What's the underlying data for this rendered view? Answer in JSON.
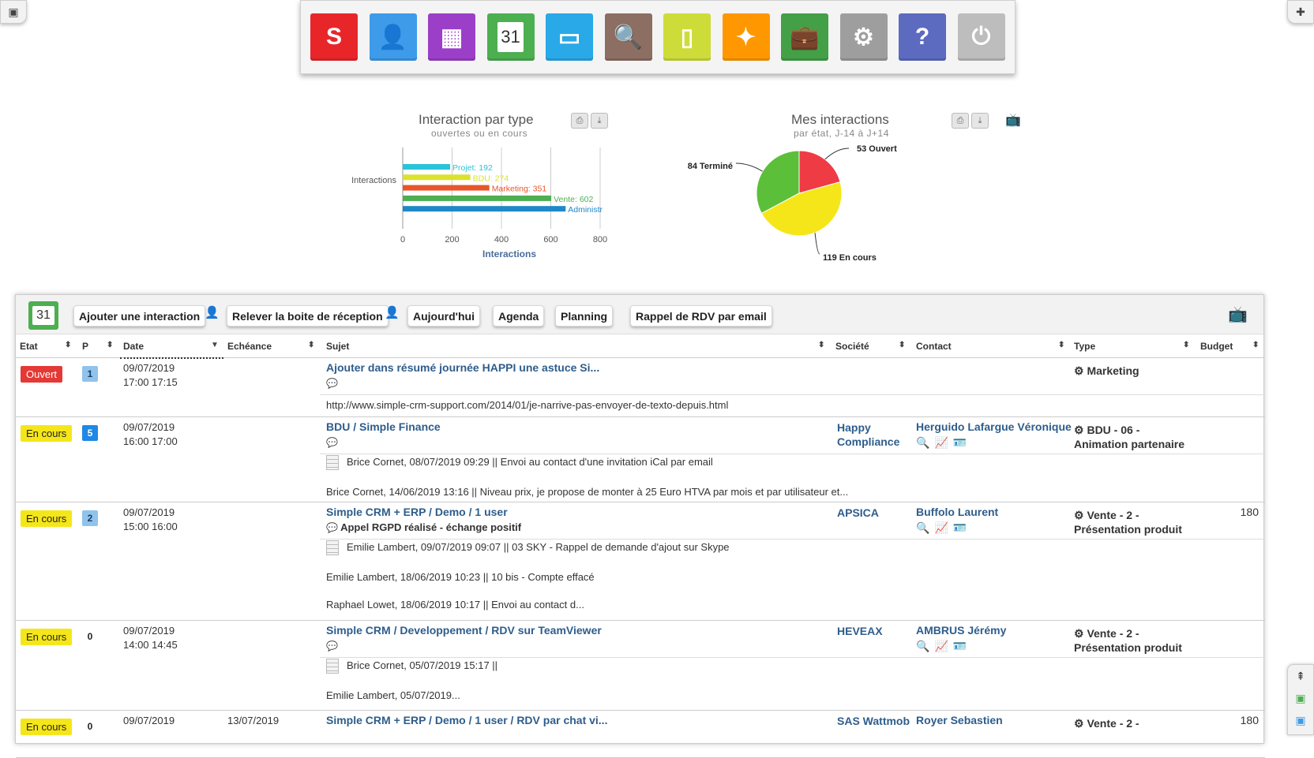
{
  "dock": {
    "apps": [
      {
        "icon": "crm-logo-icon",
        "color": "#e8262a",
        "glyph": "S"
      },
      {
        "icon": "contacts-icon",
        "color": "#3d9be9",
        "glyph": "👤"
      },
      {
        "icon": "companies-icon",
        "color": "#9b3fc8",
        "glyph": "▦"
      },
      {
        "icon": "calendar-icon",
        "color": "#4caf50",
        "glyph": "31"
      },
      {
        "icon": "folder-icon",
        "color": "#29a9e8",
        "glyph": "▭"
      },
      {
        "icon": "search-icon",
        "color": "#8d6e63",
        "glyph": "🔍"
      },
      {
        "icon": "document-icon",
        "color": "#cddc39",
        "glyph": "▯"
      },
      {
        "icon": "compass-icon",
        "color": "#ff9800",
        "glyph": "✦"
      },
      {
        "icon": "briefcase-icon",
        "color": "#43a047",
        "glyph": "💼"
      },
      {
        "icon": "settings-icon",
        "color": "#9e9e9e",
        "glyph": "⚙"
      },
      {
        "icon": "help-icon",
        "color": "#5c6bc0",
        "glyph": "?"
      },
      {
        "icon": "power-icon",
        "color": "#bdbdbd",
        "glyph": "⏻"
      }
    ]
  },
  "charts": {
    "bar": {
      "title": "Interaction par type",
      "subtitle": "ouvertes ou en cours"
    },
    "pie": {
      "title": "Mes interactions",
      "subtitle": "par état, J-14 à J+14"
    }
  },
  "chart_data": [
    {
      "type": "bar",
      "orientation": "horizontal",
      "title": "Interaction par type",
      "subtitle": "ouvertes ou en cours",
      "category_label": "Interactions",
      "xlabel": "Interactions",
      "xlim": [
        0,
        800
      ],
      "xticks": [
        "0",
        "200",
        "400",
        "600",
        "800"
      ],
      "series": [
        {
          "name": "Projet",
          "value": 192,
          "label": "Projet: 192",
          "color": "#29c4d8"
        },
        {
          "name": "BDU",
          "value": 274,
          "label": "BDU: 274",
          "color": "#dbe22a"
        },
        {
          "name": "Marketing",
          "value": 351,
          "label": "Marketing: 351",
          "color": "#e8562a"
        },
        {
          "name": "Vente",
          "value": 602,
          "label": "Vente: 602",
          "color": "#4caf50"
        },
        {
          "name": "Administr",
          "value": 660,
          "label": "Administr",
          "color": "#1e88c8"
        }
      ]
    },
    {
      "type": "pie",
      "title": "Mes interactions",
      "subtitle": "par état, J-14 à J+14",
      "slices": [
        {
          "name": "Ouvert",
          "value": 53,
          "label": "53 Ouvert",
          "color": "#ef3b44"
        },
        {
          "name": "En cours",
          "value": 119,
          "label": "119 En cours",
          "color": "#f5e61a"
        },
        {
          "name": "Terminé",
          "value": 84,
          "label": "84 Terminé",
          "color": "#5cbf3a"
        }
      ]
    }
  ],
  "toolbar": {
    "calendar_day": "31",
    "add_interaction": "Ajouter une interaction",
    "check_inbox": "Relever la boite de réception",
    "today": "Aujourd'hui",
    "agenda": "Agenda",
    "planning": "Planning",
    "email_reminder": "Rappel de RDV par email"
  },
  "table": {
    "headers": {
      "etat": "Etat",
      "p": "P",
      "date": "Date",
      "echeance": "Echéance",
      "sujet": "Sujet",
      "societe": "Société",
      "contact": "Contact",
      "type": "Type",
      "budget": "Budget"
    },
    "rows": [
      {
        "state": "Ouvert",
        "priority": "1",
        "date": "09/07/2019",
        "time": "17:00  17:15",
        "due": "",
        "subject": "Ajouter dans résumé journée HAPPI une astuce Si...",
        "comment": "",
        "notes": [
          "http://www.simple-crm-support.com/2014/01/je-narrive-pas-envoyer-de-texto-depuis.html"
        ],
        "company": "",
        "contact": "",
        "type1": "Marketing",
        "type2": "",
        "budget": ""
      },
      {
        "state": "En cours",
        "priority": "5",
        "date": "09/07/2019",
        "time": "16:00  17:00",
        "due": "",
        "subject": "BDU / Simple Finance",
        "comment": "",
        "notes": [
          "Brice Cornet, 08/07/2019 09:29 || Envoi au contact d'une invitation iCal par email",
          "Brice Cornet, 14/06/2019 13:16 || Niveau prix, je propose de monter à 25 Euro HTVA par mois et par utilisateur et..."
        ],
        "company": "Happy",
        "company2": "Compliance",
        "contact": "Herguido Lafargue Véronique",
        "type1": "BDU - 06 -",
        "type2": "Animation partenaire",
        "budget": ""
      },
      {
        "state": "En cours",
        "priority": "2",
        "date": "09/07/2019",
        "time": "15:00  16:00",
        "due": "",
        "subject": "Simple CRM + ERP / Demo / 1 user",
        "comment": "Appel RGPD réalisé - échange positif",
        "notes": [
          "Emilie Lambert, 09/07/2019 09:07 || 03 SKY - Rappel de demande d'ajout sur Skype",
          "Emilie Lambert, 18/06/2019 10:23 || 10 bis - Compte effacé",
          "Raphael Lowet, 18/06/2019 10:17 || Envoi au contact d..."
        ],
        "company": "APSICA",
        "company2": "",
        "contact": "Buffolo Laurent",
        "type1": "Vente - 2 -",
        "type2": "Présentation produit",
        "budget": "180"
      },
      {
        "state": "En cours",
        "priority": "0",
        "date": "09/07/2019",
        "time": "14:00  14:45",
        "due": "",
        "subject": "Simple CRM / Developpement / RDV sur TeamViewer",
        "comment": "",
        "notes": [
          "Brice Cornet, 05/07/2019 15:17 ||",
          "Emilie Lambert, 05/07/2019..."
        ],
        "company": "HEVEAX",
        "company2": "",
        "contact": "AMBRUS Jérémy",
        "type1": "Vente - 2 -",
        "type2": "Présentation produit",
        "budget": ""
      },
      {
        "state": "En cours",
        "priority": "0",
        "date": "09/07/2019",
        "time": "",
        "due": "13/07/2019",
        "subject": "Simple CRM + ERP / Demo / 1 user / RDV par chat vi...",
        "comment": "",
        "notes": [],
        "company": "SAS Wattmob",
        "company2": "",
        "contact": "Royer Sebastien",
        "type1": "Vente - 2 -",
        "type2": "",
        "budget": "180"
      }
    ]
  }
}
